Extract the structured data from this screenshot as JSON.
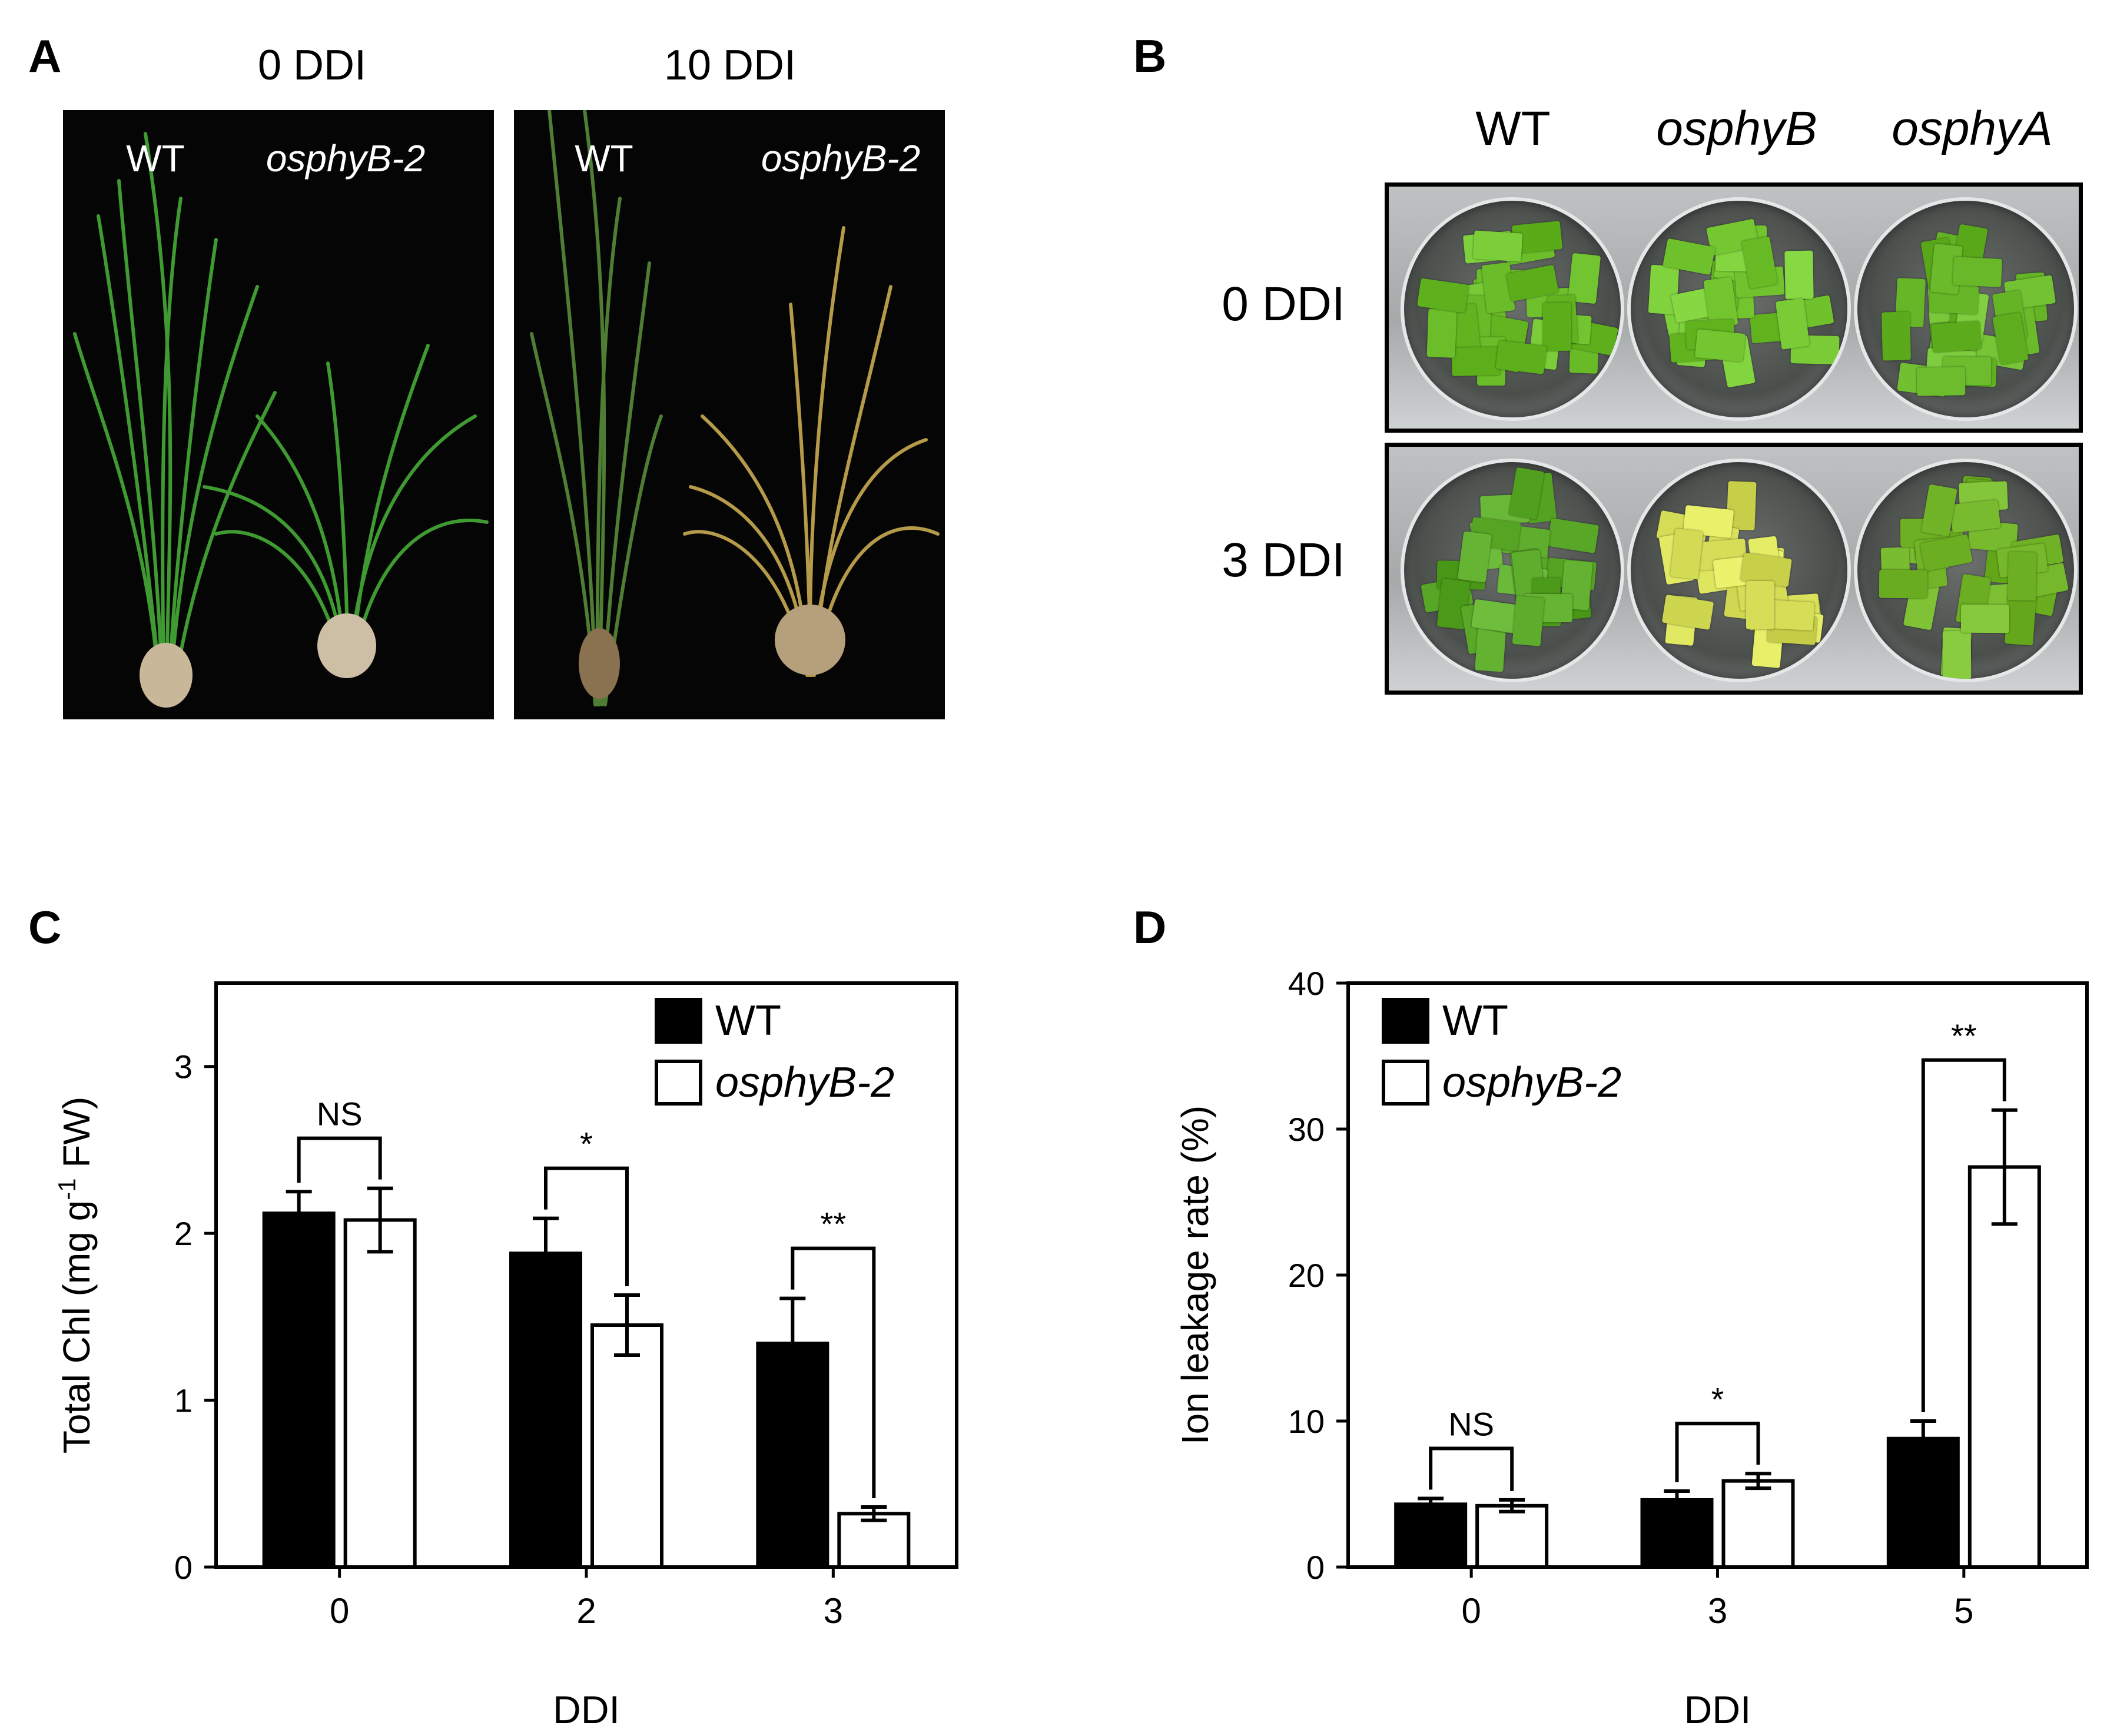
{
  "panel_a": {
    "letter": "A",
    "conditions": [
      "0 DDI",
      "10 DDI"
    ],
    "photo_labels": [
      "WT",
      "osphyB-2"
    ]
  },
  "panel_b": {
    "letter": "B",
    "columns": [
      "WT",
      "osphyB",
      "osphyA"
    ],
    "rows": [
      "0 DDI",
      "3 DDI"
    ],
    "well_colors": {
      "row_0": [
        "#6cbe2a",
        "#74c631",
        "#6bbb2c"
      ],
      "row_1": [
        "#5caa2a",
        "#d9e05a",
        "#76b92c"
      ]
    }
  },
  "panel_c": {
    "letter": "C",
    "chart_data": {
      "type": "bar",
      "categories": [
        "0",
        "2",
        "3"
      ],
      "series": [
        {
          "name": "WT",
          "values": [
            2.12,
            1.88,
            1.34
          ],
          "errors": [
            0.13,
            0.21,
            0.27
          ],
          "color": "#000000"
        },
        {
          "name": "osphyB-2",
          "values": [
            2.08,
            1.45,
            0.32
          ],
          "errors": [
            0.19,
            0.18,
            0.04
          ],
          "color": "#ffffff"
        }
      ],
      "significance": [
        "NS",
        "*",
        "**"
      ],
      "xlabel": "DDI",
      "ylabel_parts": [
        "Total Chl (mg g",
        "-1",
        " FW)"
      ],
      "ylim": [
        0,
        3.5
      ],
      "yticks": [
        0,
        1,
        2,
        3
      ],
      "legend_position": "top-right"
    }
  },
  "panel_d": {
    "letter": "D",
    "chart_data": {
      "type": "bar",
      "categories": [
        "0",
        "3",
        "5"
      ],
      "series": [
        {
          "name": "WT",
          "values": [
            4.3,
            4.6,
            8.8
          ],
          "errors": [
            0.4,
            0.6,
            1.2
          ],
          "color": "#000000"
        },
        {
          "name": "osphyB-2",
          "values": [
            4.2,
            5.9,
            27.4
          ],
          "errors": [
            0.4,
            0.5,
            3.9
          ],
          "color": "#ffffff"
        }
      ],
      "significance": [
        "NS",
        "*",
        "**"
      ],
      "xlabel": "DDI",
      "ylabel": "Ion leakage rate (%)",
      "ylim": [
        0,
        40
      ],
      "yticks": [
        0,
        10,
        20,
        30,
        40
      ],
      "legend_position": "top-left"
    }
  }
}
